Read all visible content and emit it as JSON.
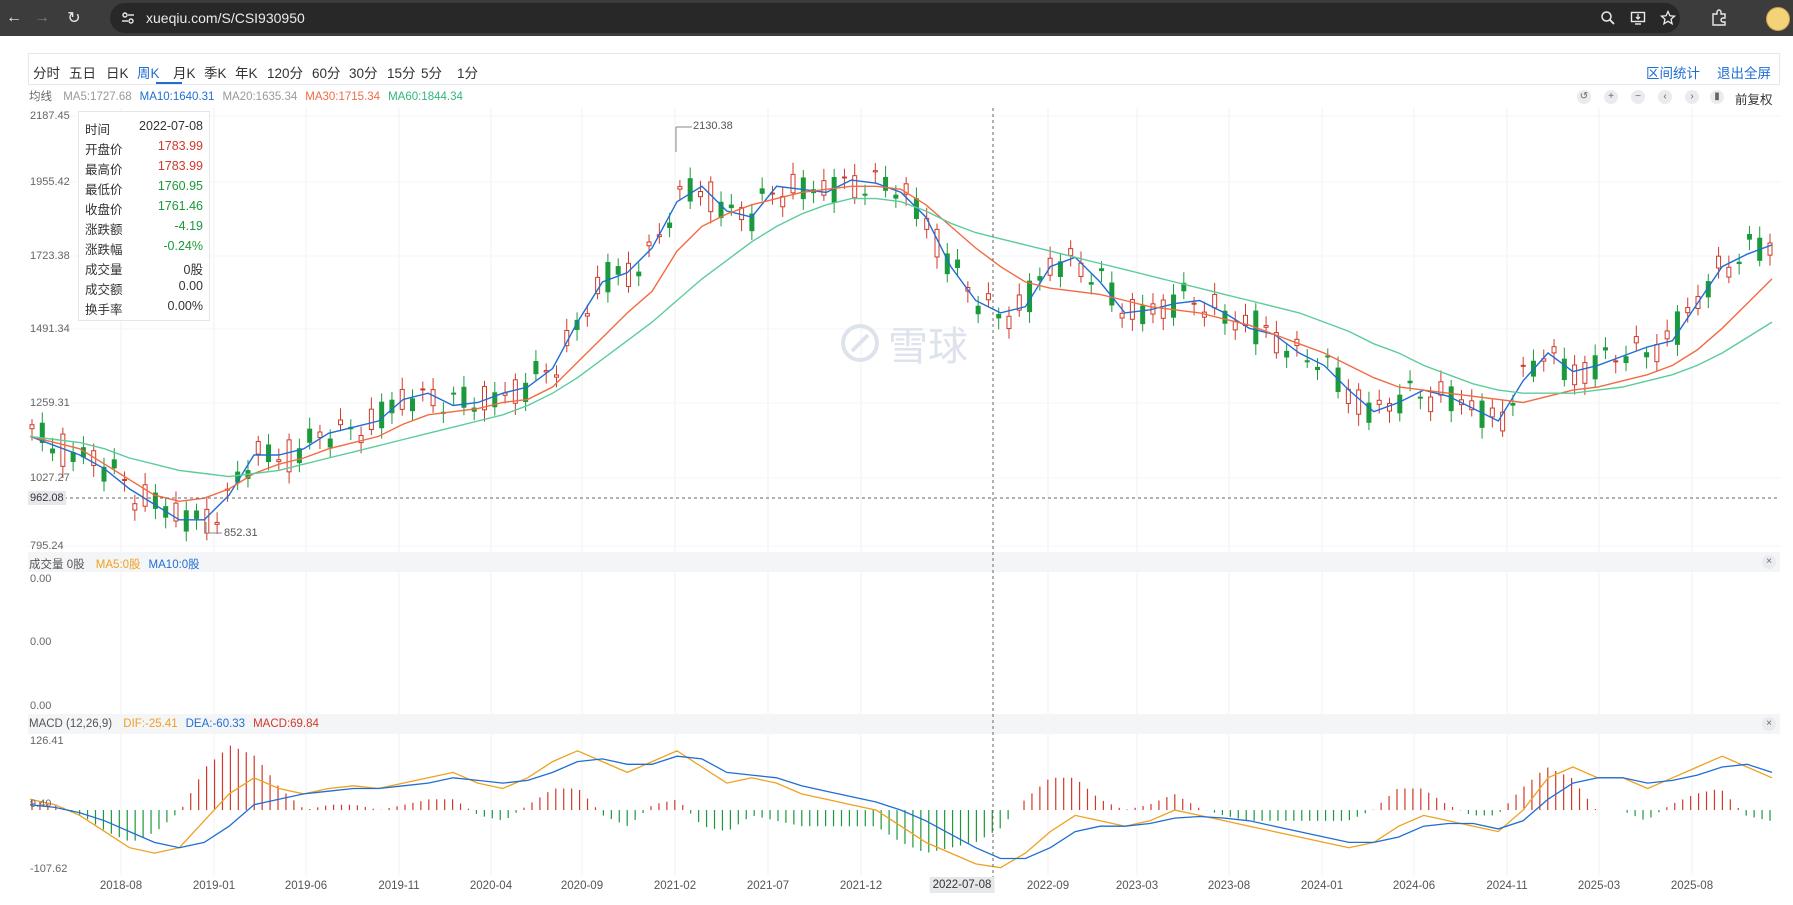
{
  "browser": {
    "url": "xueqiu.com/S/CSI930950"
  },
  "toolbar": {
    "periods": [
      "分时",
      "五日",
      "日K",
      "周K",
      "月K",
      "季K",
      "年K",
      "120分",
      "60分",
      "30分",
      "15分",
      "5分",
      "1分"
    ],
    "active_period": "周K",
    "range_stats": "区间统计",
    "exit_fullscreen": "退出全屏"
  },
  "ma_legend": {
    "title": "均线",
    "items": [
      {
        "label": "MA5:1727.68",
        "color": "#999999"
      },
      {
        "label": "MA10:1640.31",
        "color": "#1f6ed4"
      },
      {
        "label": "MA20:1635.34",
        "color": "#999999"
      },
      {
        "label": "MA30:1715.34",
        "color": "#f26b43"
      },
      {
        "label": "MA60:1844.34",
        "color": "#2fb87d"
      }
    ],
    "adjust": "前复权"
  },
  "price_axis": [
    "2187.45",
    "1955.42",
    "1723.38",
    "1491.34",
    "1259.31",
    "1027.27",
    "795.24"
  ],
  "crosshair": {
    "price": "962.08",
    "date": "2022-07-08"
  },
  "annotations": {
    "high": "2130.38",
    "low": "852.31"
  },
  "tooltip": {
    "rows": [
      {
        "k": "时间",
        "v": "2022-07-08",
        "color": "#333333"
      },
      {
        "k": "开盘价",
        "v": "1783.99",
        "color": "#d0392b"
      },
      {
        "k": "最高价",
        "v": "1783.99",
        "color": "#d0392b"
      },
      {
        "k": "最低价",
        "v": "1760.95",
        "color": "#1a9a3a"
      },
      {
        "k": "收盘价",
        "v": "1761.46",
        "color": "#1a9a3a"
      },
      {
        "k": "涨跌额",
        "v": "-4.19",
        "color": "#1a9a3a"
      },
      {
        "k": "涨跌幅",
        "v": "-0.24%",
        "color": "#1a9a3a"
      },
      {
        "k": "成交量",
        "v": "0股",
        "color": "#333333"
      },
      {
        "k": "成交额",
        "v": "0.00",
        "color": "#333333"
      },
      {
        "k": "换手率",
        "v": "0.00%",
        "color": "#333333"
      }
    ]
  },
  "volume_legend": {
    "title": "成交量 0股",
    "items": [
      {
        "label": "MA5:0股",
        "color": "#f0a020"
      },
      {
        "label": "MA10:0股",
        "color": "#1f6ed4"
      }
    ],
    "axis": [
      "0.00",
      "0.00",
      "0.00"
    ]
  },
  "macd_legend": {
    "title": "MACD (12,26,9)",
    "items": [
      {
        "label": "DIF:-25.41",
        "color": "#f0a020"
      },
      {
        "label": "DEA:-60.33",
        "color": "#1f6ed4"
      },
      {
        "label": "MACD:69.84",
        "color": "#d0392b"
      }
    ],
    "axis": [
      "126.41",
      "9.40",
      "-107.62"
    ]
  },
  "x_ticks": [
    "2018-08",
    "2019-01",
    "2019-06",
    "2019-11",
    "2020-04",
    "2020-09",
    "2021-02",
    "2021-07",
    "2021-12",
    "2022-09",
    "2023-03",
    "2023-08",
    "2024-01",
    "2024-06",
    "2024-11",
    "2025-03",
    "2025-08"
  ],
  "watermark": "雪球",
  "colors": {
    "up": "#d0392b",
    "down": "#1a9a3a",
    "ma10": "#1f6ed4",
    "ma30": "#f26b43",
    "ma60": "#5ccc9a",
    "dif": "#f0a020",
    "dea": "#1f6ed4"
  },
  "chart_data": {
    "type": "candlestick",
    "period": "weekly",
    "symbol": "CSI930950",
    "ylim": [
      795.24,
      2187.45
    ],
    "series": [
      {
        "name": "MA10",
        "values": [
          1150,
          1120,
          1090,
          1045,
          980,
          930,
          880,
          880,
          960,
          1090,
          1090,
          1110,
          1160,
          1180,
          1200,
          1270,
          1290,
          1250,
          1260,
          1290,
          1310,
          1370,
          1520,
          1650,
          1680,
          1760,
          1910,
          1960,
          1880,
          1860,
          1960,
          1950,
          1940,
          1980,
          1970,
          1940,
          1860,
          1700,
          1590,
          1550,
          1570,
          1700,
          1730,
          1650,
          1550,
          1560,
          1580,
          1590,
          1550,
          1500,
          1480,
          1420,
          1380,
          1300,
          1230,
          1260,
          1300,
          1280,
          1240,
          1200,
          1330,
          1420,
          1360,
          1380,
          1410,
          1440,
          1460,
          1580,
          1700,
          1740,
          1770
        ]
      },
      {
        "name": "MA30",
        "values": [
          1150,
          1130,
          1110,
          1060,
          1010,
          960,
          940,
          950,
          980,
          1030,
          1060,
          1080,
          1110,
          1130,
          1150,
          1190,
          1220,
          1230,
          1240,
          1260,
          1270,
          1310,
          1390,
          1470,
          1550,
          1620,
          1750,
          1830,
          1870,
          1900,
          1920,
          1940,
          1950,
          1960,
          1960,
          1950,
          1900,
          1830,
          1760,
          1700,
          1650,
          1630,
          1620,
          1610,
          1590,
          1570,
          1560,
          1550,
          1530,
          1510,
          1480,
          1450,
          1420,
          1380,
          1340,
          1310,
          1300,
          1290,
          1280,
          1270,
          1260,
          1280,
          1300,
          1310,
          1330,
          1350,
          1380,
          1430,
          1500,
          1580,
          1660
        ]
      },
      {
        "name": "MA60",
        "values": [
          1150,
          1140,
          1130,
          1110,
          1080,
          1060,
          1040,
          1030,
          1020,
          1030,
          1040,
          1060,
          1080,
          1100,
          1120,
          1140,
          1160,
          1180,
          1200,
          1220,
          1250,
          1290,
          1340,
          1400,
          1460,
          1520,
          1590,
          1660,
          1720,
          1780,
          1830,
          1870,
          1900,
          1920,
          1920,
          1910,
          1880,
          1840,
          1810,
          1790,
          1770,
          1750,
          1730,
          1710,
          1690,
          1670,
          1650,
          1630,
          1610,
          1590,
          1570,
          1550,
          1520,
          1490,
          1450,
          1420,
          1380,
          1350,
          1320,
          1300,
          1290,
          1290,
          1290,
          1300,
          1310,
          1330,
          1350,
          1380,
          1420,
          1470,
          1520
        ]
      },
      {
        "name": "DIF",
        "values": [
          20,
          10,
          -10,
          -40,
          -70,
          -80,
          -70,
          -20,
          30,
          60,
          40,
          30,
          40,
          45,
          40,
          50,
          60,
          70,
          50,
          40,
          60,
          90,
          110,
          90,
          70,
          90,
          110,
          80,
          50,
          60,
          50,
          30,
          20,
          10,
          0,
          -30,
          -60,
          -80,
          -100,
          -107,
          -80,
          -40,
          -10,
          -20,
          -30,
          -20,
          0,
          -10,
          -20,
          -30,
          -40,
          -50,
          -60,
          -70,
          -60,
          -30,
          -10,
          -20,
          -30,
          -40,
          0,
          60,
          80,
          60,
          60,
          40,
          60,
          80,
          100,
          80,
          60
        ]
      },
      {
        "name": "DEA",
        "values": [
          10,
          5,
          -5,
          -20,
          -40,
          -60,
          -70,
          -60,
          -30,
          10,
          20,
          30,
          35,
          40,
          40,
          45,
          50,
          60,
          55,
          50,
          55,
          70,
          90,
          95,
          85,
          85,
          100,
          95,
          70,
          65,
          60,
          45,
          35,
          25,
          15,
          0,
          -20,
          -45,
          -70,
          -90,
          -90,
          -70,
          -40,
          -30,
          -30,
          -25,
          -15,
          -12,
          -15,
          -20,
          -30,
          -40,
          -50,
          -60,
          -60,
          -50,
          -30,
          -25,
          -25,
          -35,
          -20,
          20,
          50,
          60,
          60,
          50,
          55,
          65,
          80,
          85,
          70
        ]
      }
    ],
    "xlabel": "",
    "ylabel": ""
  }
}
